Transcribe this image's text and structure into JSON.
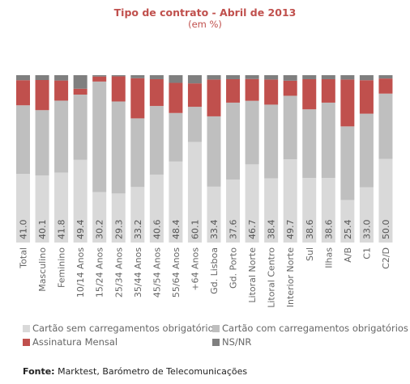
{
  "chart_data": {
    "type": "bar",
    "stacked": true,
    "normalized_percent": true,
    "title": "Tipo de contrato - Abril de 2013",
    "subtitle": "(em %)",
    "categories": [
      "Total",
      "Masculino",
      "Feminino",
      "10/14 Anos",
      "15/24 Anos",
      "25/34 Anos",
      "35/44 Anos",
      "45/54 Anos",
      "55/64 Anos",
      "+64 Anos",
      "Gd. Lisboa",
      "Gd. Porto",
      "Litoral Norte",
      "Litoral Centro",
      "Interior Norte",
      "Sul",
      "Ilhas",
      "A/B",
      "C1",
      "C2/D"
    ],
    "series": [
      {
        "name": "Cartão sem carregamentos obrigatórios",
        "color": "#d9d9d9",
        "values": [
          41.0,
          40.1,
          41.8,
          49.4,
          30.2,
          29.3,
          33.2,
          40.6,
          48.4,
          60.1,
          33.4,
          37.6,
          46.7,
          38.4,
          49.7,
          38.6,
          38.6,
          25.4,
          33.0,
          50.0
        ]
      },
      {
        "name": "Cartão com carregamentos obrigatórios",
        "color": "#bfbfbf",
        "values": [
          41.0,
          39.0,
          43.0,
          39.0,
          66.0,
          55.0,
          41.0,
          41.0,
          29.0,
          21.0,
          42.0,
          46.0,
          38.0,
          44.0,
          38.0,
          41.0,
          45.0,
          44.0,
          44.0,
          39.0
        ]
      },
      {
        "name": "Assinatura Mensal",
        "color": "#c0504d",
        "values": [
          15.0,
          18.0,
          12.0,
          3.5,
          3.0,
          15.0,
          24.0,
          16.0,
          18.0,
          14.0,
          22.0,
          14.0,
          13.0,
          15.0,
          9.0,
          18.0,
          14.0,
          28.0,
          20.0,
          9.0
        ]
      },
      {
        "name": "NS/NR",
        "color": "#7f7f7f",
        "values": [
          3.0,
          2.9,
          3.2,
          8.1,
          0.8,
          0.7,
          1.8,
          2.4,
          4.6,
          4.9,
          2.6,
          2.4,
          2.3,
          2.6,
          3.3,
          2.4,
          2.4,
          2.6,
          3.0,
          2.0
        ]
      }
    ],
    "data_labels": [
      "41.0",
      "40.1",
      "41.8",
      "49.4",
      "30.2",
      "29.3",
      "33.2",
      "40.6",
      "48.4",
      "60.1",
      "33.4",
      "37.6",
      "46.7",
      "38.4",
      "49.7",
      "38.6",
      "38.6",
      "25.4",
      "33.0",
      "50.0"
    ],
    "ylim": [
      0,
      100
    ],
    "grid": false,
    "legend_position": "bottom"
  },
  "source": {
    "label": "Fonte:",
    "text": " Marktest, Barómetro de Telecomunicações"
  }
}
